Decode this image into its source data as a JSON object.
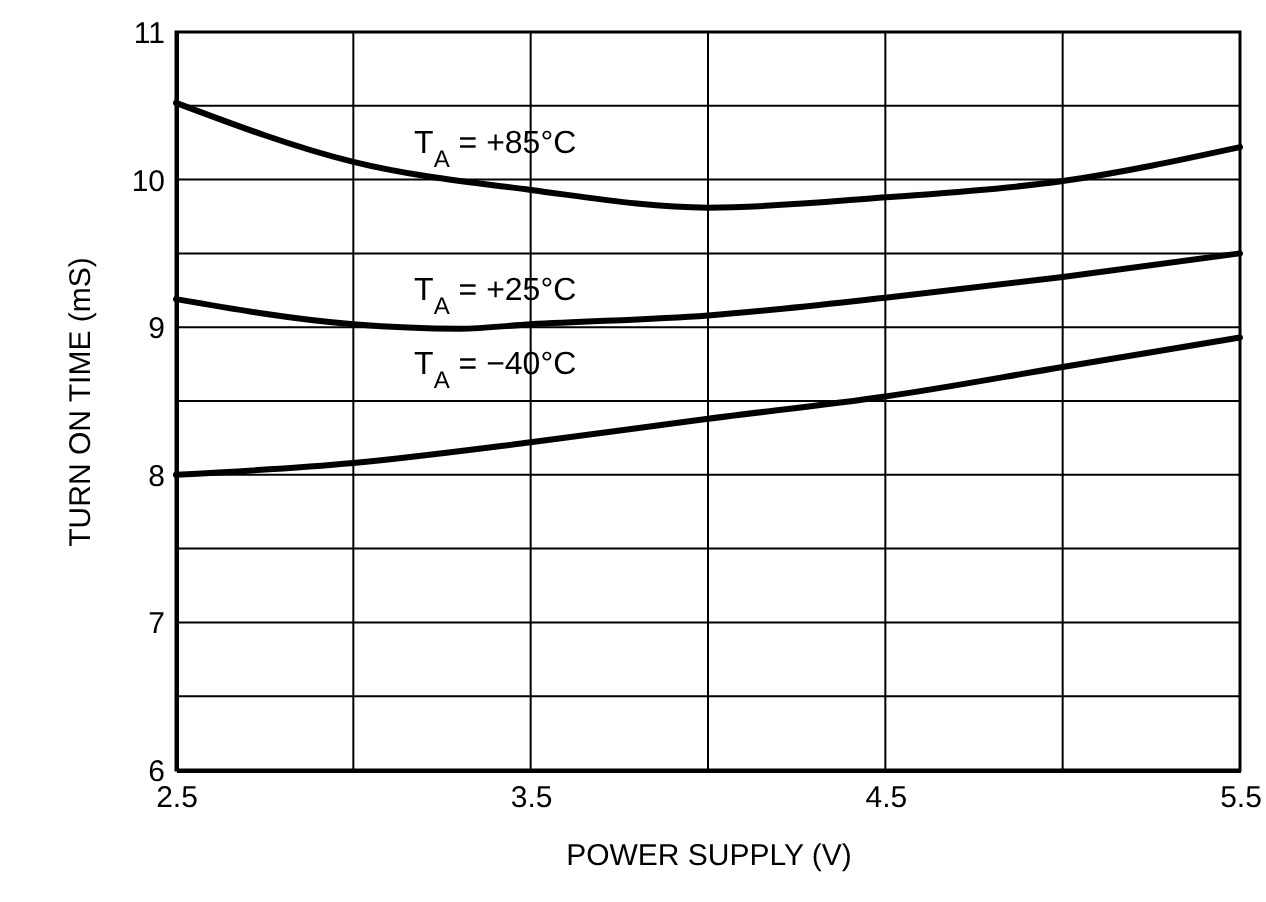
{
  "chart_data": {
    "type": "line",
    "xlabel": "POWER SUPPLY (V)",
    "ylabel": "TURN ON TIME (mS)",
    "series": [
      {
        "color": "#000000",
        "x": [
          2.5,
          3.0,
          3.5,
          4.0,
          4.5,
          5.0,
          5.5
        ],
        "values": [
          10.52,
          10.12,
          9.93,
          9.81,
          9.88,
          9.99,
          10.22
        ]
      },
      {
        "color": "#000000",
        "x": [
          2.5,
          3.0,
          3.3,
          3.5,
          4.0,
          4.5,
          5.0,
          5.5
        ],
        "values": [
          9.19,
          9.02,
          8.99,
          9.02,
          9.08,
          9.2,
          9.34,
          9.5
        ]
      },
      {
        "color": "#000000",
        "x": [
          2.5,
          3.0,
          3.5,
          4.0,
          4.5,
          5.0,
          5.5
        ],
        "values": [
          8.0,
          8.08,
          8.22,
          8.38,
          8.53,
          8.73,
          8.93
        ]
      }
    ],
    "annotations": [
      "T$_{A}$ = +85°C",
      "T$_{A}$ = +25°C",
      "T$_{A}$ = −40°C"
    ],
    "xlim": [
      2.5,
      5.5
    ],
    "xticks": [
      2.5,
      {
        "value": 3,
        "label": null
      },
      3.5,
      {
        "value": 4,
        "label": null
      },
      4.5,
      {
        "value": 5,
        "label": null
      },
      5.5
    ],
    "ylim": [
      6,
      11
    ],
    "yticks": [
      6,
      {
        "value": 6.5,
        "label": null
      },
      7,
      {
        "value": 7.5,
        "label": null
      },
      8,
      {
        "value": 8.5,
        "label": null
      },
      9,
      {
        "value": 9.5,
        "label": null
      },
      10,
      {
        "value": 10.5,
        "label": null
      },
      11
    ],
    "grid": true,
    "line_style": "solid"
  }
}
